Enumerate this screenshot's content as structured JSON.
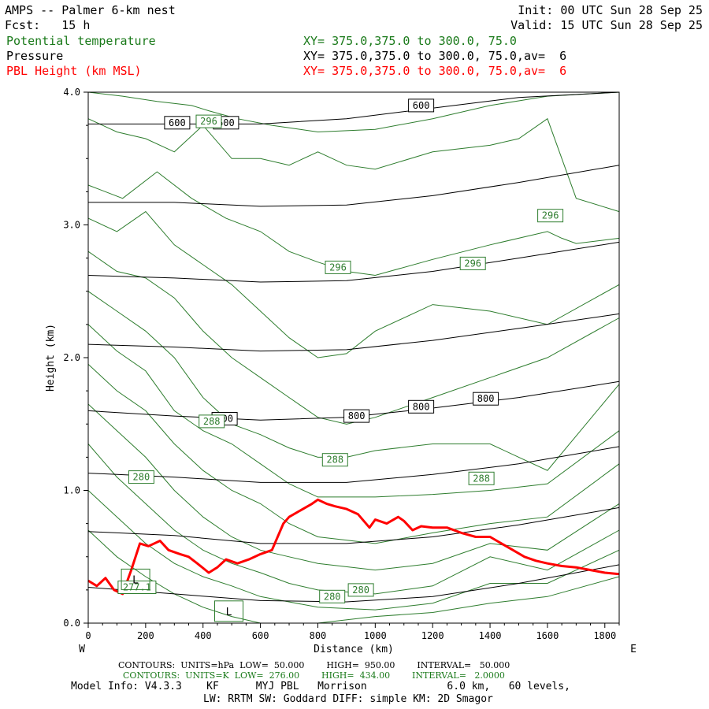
{
  "header": {
    "title_left": "AMPS -- Palmer 6-km nest",
    "fcst": "Fcst:   15 h",
    "init": "Init: 00 UTC Sun 28 Sep 25",
    "valid": "Valid: 15 UTC Sun 28 Sep 25"
  },
  "fields": [
    {
      "name": "Potential temperature",
      "xy": "XY= 375.0,375.0 to 300.0, 75.0",
      "color": "#1a7a1a"
    },
    {
      "name": "Pressure",
      "xy": "XY= 375.0,375.0 to 300.0, 75.0,av=  6",
      "color": "#000000"
    },
    {
      "name": "PBL Height (km MSL)",
      "xy": "XY= 375.0,375.0 to 300.0, 75.0,av=  6",
      "color": "#ff0000"
    }
  ],
  "footer": {
    "line1": "CONTOURS:  UNITS=hPa  LOW=  50.000        HIGH=  950.00        INTERVAL=   50.000",
    "line2": "CONTOURS:  UNITS=K  LOW=  276.00        HIGH=  434.00        INTERVAL=   2.0000",
    "line3": "Model Info: V4.3.3    KF      MYJ PBL   Morrison             6.0 km,   60 levels,",
    "line4": "LW: RRTM SW: Goddard DIFF: simple KM: 2D Smagor"
  },
  "chart_data": {
    "type": "line",
    "xlabel": "Distance (km)",
    "ylabel": "Height (km)",
    "xlim": [
      0,
      1850
    ],
    "ylim": [
      0,
      4.0
    ],
    "x_ticks": [
      0,
      200,
      400,
      600,
      800,
      1000,
      1200,
      1400,
      1600,
      1800
    ],
    "y_ticks": [
      "0.0",
      "1.0",
      "2.0",
      "3.0",
      "4.0"
    ],
    "left_end_label": "W",
    "right_end_label": "E",
    "pbl_height": {
      "color": "#ff0000",
      "x": [
        0,
        30,
        60,
        90,
        120,
        150,
        180,
        210,
        250,
        280,
        320,
        350,
        380,
        420,
        450,
        480,
        520,
        560,
        600,
        640,
        680,
        700,
        740,
        780,
        800,
        830,
        860,
        900,
        940,
        980,
        1000,
        1040,
        1080,
        1100,
        1130,
        1160,
        1200,
        1250,
        1300,
        1350,
        1400,
        1440,
        1480,
        1520,
        1560,
        1600,
        1650,
        1700,
        1750,
        1800,
        1850
      ],
      "y": [
        0.32,
        0.28,
        0.34,
        0.25,
        0.22,
        0.4,
        0.6,
        0.58,
        0.62,
        0.55,
        0.52,
        0.5,
        0.45,
        0.38,
        0.42,
        0.48,
        0.45,
        0.48,
        0.52,
        0.55,
        0.75,
        0.8,
        0.85,
        0.9,
        0.93,
        0.9,
        0.88,
        0.86,
        0.82,
        0.72,
        0.78,
        0.75,
        0.8,
        0.77,
        0.7,
        0.73,
        0.72,
        0.72,
        0.68,
        0.65,
        0.65,
        0.6,
        0.55,
        0.5,
        0.47,
        0.45,
        0.43,
        0.42,
        0.4,
        0.38,
        0.37
      ]
    },
    "pressure_contours": [
      {
        "level": "600",
        "x": [
          0,
          300,
          600,
          900,
          1200,
          1500,
          1850
        ],
        "y": [
          3.76,
          3.76,
          3.76,
          3.8,
          3.88,
          3.96,
          4.05
        ]
      },
      {
        "level": "650",
        "x": [
          0,
          300,
          600,
          900,
          1200,
          1500,
          1850
        ],
        "y": [
          3.17,
          3.17,
          3.14,
          3.15,
          3.22,
          3.32,
          3.45
        ]
      },
      {
        "level": "700",
        "x": [
          0,
          300,
          600,
          900,
          1200,
          1500,
          1850
        ],
        "y": [
          2.62,
          2.6,
          2.57,
          2.58,
          2.65,
          2.75,
          2.87
        ]
      },
      {
        "level": "750",
        "x": [
          0,
          300,
          600,
          900,
          1200,
          1500,
          1850
        ],
        "y": [
          2.1,
          2.08,
          2.05,
          2.06,
          2.13,
          2.22,
          2.33
        ]
      },
      {
        "level": "800",
        "x": [
          0,
          300,
          600,
          900,
          1200,
          1500,
          1850
        ],
        "y": [
          1.6,
          1.56,
          1.53,
          1.55,
          1.62,
          1.7,
          1.82
        ]
      },
      {
        "level": "850",
        "x": [
          0,
          300,
          600,
          900,
          1200,
          1500,
          1850
        ],
        "y": [
          1.13,
          1.1,
          1.06,
          1.06,
          1.12,
          1.2,
          1.33
        ]
      },
      {
        "level": "900",
        "x": [
          0,
          300,
          600,
          900,
          1200,
          1500,
          1850
        ],
        "y": [
          0.69,
          0.66,
          0.6,
          0.6,
          0.65,
          0.74,
          0.87
        ]
      },
      {
        "level": "950",
        "x": [
          0,
          300,
          600,
          900,
          1200,
          1500,
          1850
        ],
        "y": [
          0.27,
          0.22,
          0.17,
          0.16,
          0.2,
          0.3,
          0.44
        ]
      }
    ],
    "pressure_labels": [
      {
        "text": "600",
        "x": 310,
        "y": 3.77
      },
      {
        "text": "600",
        "x": 480,
        "y": 3.77
      },
      {
        "text": "600",
        "x": 1160,
        "y": 3.9
      },
      {
        "text": "800",
        "x": 475,
        "y": 1.54
      },
      {
        "text": "800",
        "x": 935,
        "y": 1.56
      },
      {
        "text": "800",
        "x": 1160,
        "y": 1.63
      },
      {
        "text": "800",
        "x": 1385,
        "y": 1.69
      }
    ],
    "theta_labels": [
      {
        "text": "296",
        "x": 420,
        "y": 3.78
      },
      {
        "text": "296",
        "x": 870,
        "y": 2.68
      },
      {
        "text": "296",
        "x": 1340,
        "y": 2.71
      },
      {
        "text": "296",
        "x": 1610,
        "y": 3.07
      },
      {
        "text": "288",
        "x": 430,
        "y": 1.52
      },
      {
        "text": "288",
        "x": 860,
        "y": 1.23
      },
      {
        "text": "288",
        "x": 1370,
        "y": 1.09
      },
      {
        "text": "280",
        "x": 185,
        "y": 1.1
      },
      {
        "text": "280",
        "x": 850,
        "y": 0.2
      },
      {
        "text": "280",
        "x": 950,
        "y": 0.25
      },
      {
        "text": "277.1",
        "x": 170,
        "y": 0.27
      }
    ],
    "low_markers": [
      {
        "text": "L",
        "x": 165,
        "y": 0.33
      },
      {
        "text": "L",
        "x": 490,
        "y": 0.09
      }
    ],
    "theta_contours": [
      {
        "x": [
          0,
          120,
          240,
          360,
          420,
          520,
          640,
          800,
          1000,
          1200,
          1400,
          1600,
          1850
        ],
        "y": [
          4.0,
          3.97,
          3.93,
          3.9,
          3.86,
          3.8,
          3.75,
          3.7,
          3.72,
          3.8,
          3.9,
          3.97,
          4.0
        ]
      },
      {
        "x": [
          0,
          100,
          200,
          300,
          400,
          500,
          600,
          700,
          800,
          900,
          1000,
          1200,
          1400,
          1500,
          1600,
          1700,
          1850
        ],
        "y": [
          3.8,
          3.7,
          3.65,
          3.55,
          3.75,
          3.5,
          3.5,
          3.45,
          3.55,
          3.45,
          3.42,
          3.55,
          3.6,
          3.65,
          3.8,
          3.2,
          3.1
        ]
      },
      {
        "x": [
          0,
          120,
          240,
          360,
          480,
          600,
          700,
          800,
          900,
          1000,
          1200,
          1400,
          1600,
          1650,
          1700,
          1850
        ],
        "y": [
          3.3,
          3.2,
          3.4,
          3.2,
          3.05,
          2.95,
          2.8,
          2.72,
          2.65,
          2.62,
          2.74,
          2.85,
          2.95,
          2.9,
          2.86,
          2.9
        ]
      },
      {
        "x": [
          0,
          100,
          200,
          300,
          400,
          500,
          600,
          700,
          800,
          900,
          1000,
          1200,
          1400,
          1600,
          1850
        ],
        "y": [
          3.05,
          2.95,
          3.1,
          2.85,
          2.7,
          2.55,
          2.35,
          2.15,
          2.0,
          2.03,
          2.2,
          2.4,
          2.35,
          2.25,
          2.55
        ]
      },
      {
        "x": [
          0,
          100,
          200,
          300,
          400,
          500,
          600,
          700,
          800,
          900,
          1000,
          1200,
          1400,
          1600,
          1850
        ],
        "y": [
          2.8,
          2.65,
          2.6,
          2.45,
          2.2,
          2.0,
          1.85,
          1.7,
          1.55,
          1.5,
          1.55,
          1.7,
          1.85,
          2.0,
          2.3
        ]
      },
      {
        "x": [
          0,
          100,
          200,
          300,
          400,
          500,
          600,
          700,
          800,
          900,
          1000,
          1200,
          1400,
          1500,
          1600,
          1850
        ],
        "y": [
          2.5,
          2.35,
          2.2,
          2.0,
          1.7,
          1.5,
          1.42,
          1.32,
          1.25,
          1.25,
          1.3,
          1.35,
          1.35,
          1.25,
          1.15,
          1.8
        ]
      },
      {
        "x": [
          0,
          100,
          200,
          300,
          400,
          500,
          600,
          700,
          800,
          1000,
          1200,
          1400,
          1600,
          1850
        ],
        "y": [
          2.25,
          2.05,
          1.9,
          1.6,
          1.45,
          1.35,
          1.2,
          1.05,
          0.95,
          0.95,
          0.97,
          1.0,
          1.05,
          1.45
        ]
      },
      {
        "x": [
          0,
          100,
          200,
          300,
          400,
          500,
          600,
          700,
          800,
          1000,
          1200,
          1400,
          1600,
          1850
        ],
        "y": [
          1.95,
          1.75,
          1.6,
          1.35,
          1.15,
          1.0,
          0.9,
          0.75,
          0.65,
          0.6,
          0.68,
          0.75,
          0.8,
          1.2
        ]
      },
      {
        "x": [
          0,
          100,
          200,
          300,
          400,
          500,
          600,
          700,
          800,
          1000,
          1200,
          1400,
          1600,
          1850
        ],
        "y": [
          1.65,
          1.45,
          1.25,
          1.0,
          0.8,
          0.65,
          0.55,
          0.5,
          0.45,
          0.4,
          0.45,
          0.6,
          0.55,
          0.9
        ]
      },
      {
        "x": [
          0,
          100,
          200,
          300,
          400,
          500,
          600,
          700,
          800,
          1000,
          1200,
          1400,
          1600,
          1850
        ],
        "y": [
          1.35,
          1.1,
          0.9,
          0.7,
          0.55,
          0.45,
          0.38,
          0.3,
          0.25,
          0.22,
          0.28,
          0.5,
          0.4,
          0.7
        ]
      },
      {
        "x": [
          0,
          100,
          200,
          300,
          400,
          500,
          600,
          800,
          1000,
          1200,
          1400,
          1600,
          1850
        ],
        "y": [
          1.0,
          0.8,
          0.6,
          0.45,
          0.35,
          0.28,
          0.2,
          0.12,
          0.1,
          0.15,
          0.3,
          0.3,
          0.55
        ]
      },
      {
        "x": [
          0,
          100,
          200,
          300,
          400,
          500,
          600,
          800,
          1000,
          1200,
          1400,
          1600,
          1850
        ],
        "y": [
          0.7,
          0.5,
          0.35,
          0.22,
          0.12,
          0.05,
          0.0,
          0.0,
          0.05,
          0.08,
          0.15,
          0.2,
          0.35
        ]
      }
    ]
  }
}
